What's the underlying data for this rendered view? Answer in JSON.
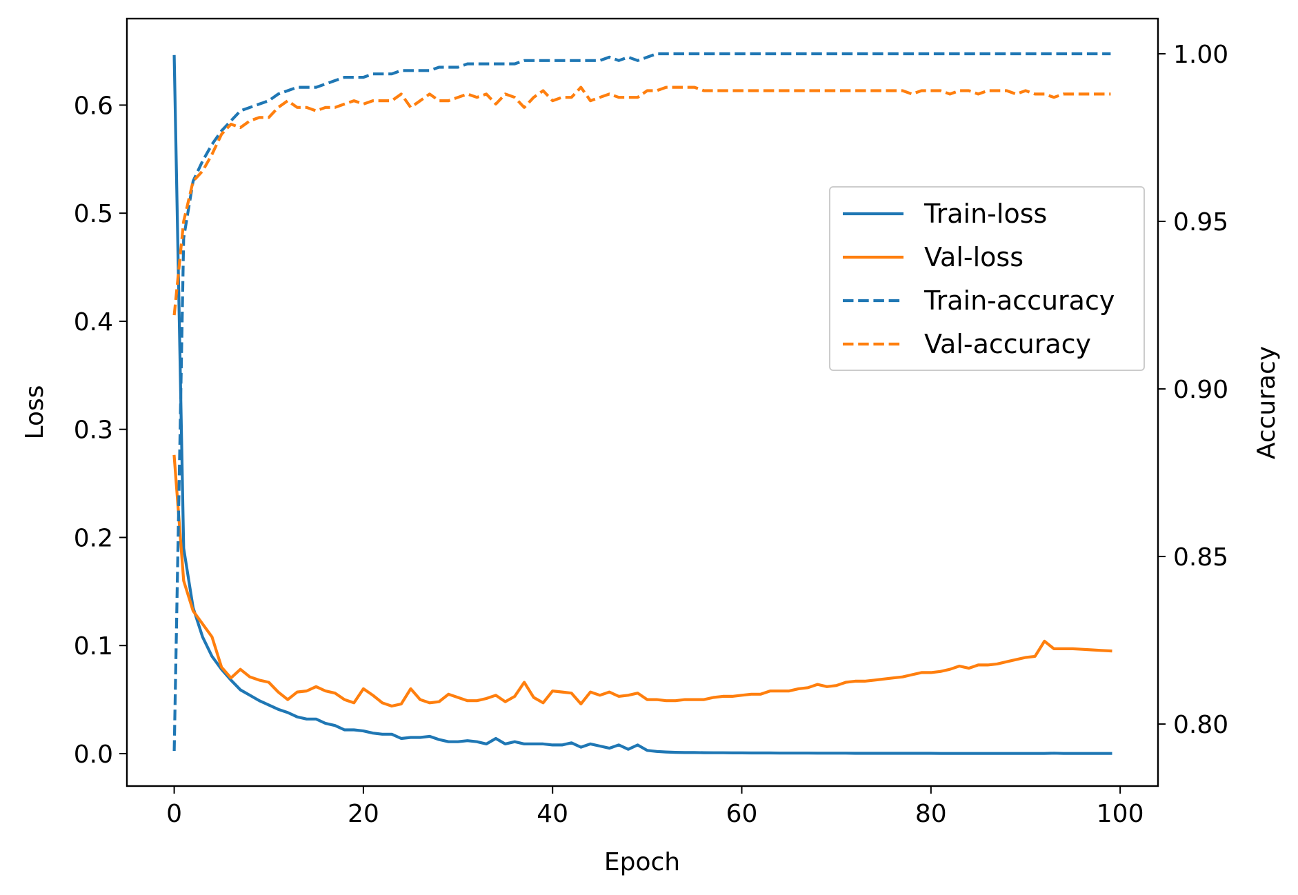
{
  "chart_data": {
    "type": "line",
    "xlabel": "Epoch",
    "ylabel_left": "Loss",
    "ylabel_right": "Accuracy",
    "xlim": [
      -5,
      104
    ],
    "ylim_left": [
      -0.03,
      0.68
    ],
    "ylim_right": [
      0.7815,
      1.0105
    ],
    "x_ticks": [
      0,
      20,
      40,
      60,
      80,
      100
    ],
    "x_tick_labels": [
      "0",
      "20",
      "40",
      "60",
      "80",
      "100"
    ],
    "left_ticks": [
      0.0,
      0.1,
      0.2,
      0.3,
      0.4,
      0.5,
      0.6
    ],
    "left_tick_labels": [
      "0.0",
      "0.1",
      "0.2",
      "0.3",
      "0.4",
      "0.5",
      "0.6"
    ],
    "right_ticks": [
      0.8,
      0.85,
      0.9,
      0.95,
      1.0
    ],
    "right_tick_labels": [
      "0.80",
      "0.85",
      "0.90",
      "0.95",
      "1.00"
    ],
    "grid": false,
    "legend_position": "center-right",
    "series": [
      {
        "name": "Train-loss",
        "axis": "left",
        "style": "solid",
        "color": "#1f77b4",
        "x": [
          0,
          1,
          2,
          3,
          4,
          5,
          6,
          7,
          8,
          9,
          10,
          11,
          12,
          13,
          14,
          15,
          16,
          17,
          18,
          19,
          20,
          21,
          22,
          23,
          24,
          25,
          26,
          27,
          28,
          29,
          30,
          31,
          32,
          33,
          34,
          35,
          36,
          37,
          38,
          39,
          40,
          41,
          42,
          43,
          44,
          45,
          46,
          47,
          48,
          49,
          50,
          51,
          52,
          53,
          54,
          55,
          56,
          57,
          58,
          59,
          60,
          61,
          62,
          63,
          64,
          65,
          66,
          67,
          68,
          69,
          70,
          71,
          72,
          73,
          74,
          75,
          76,
          77,
          78,
          79,
          80,
          81,
          82,
          83,
          84,
          85,
          86,
          87,
          88,
          89,
          90,
          91,
          92,
          93,
          94,
          95,
          96,
          97,
          98,
          99
        ],
        "values": [
          0.645,
          0.19,
          0.135,
          0.108,
          0.09,
          0.078,
          0.068,
          0.059,
          0.054,
          0.049,
          0.045,
          0.041,
          0.038,
          0.034,
          0.032,
          0.032,
          0.028,
          0.026,
          0.022,
          0.022,
          0.021,
          0.019,
          0.018,
          0.018,
          0.014,
          0.015,
          0.015,
          0.016,
          0.013,
          0.011,
          0.011,
          0.012,
          0.011,
          0.009,
          0.014,
          0.009,
          0.011,
          0.009,
          0.009,
          0.009,
          0.008,
          0.008,
          0.01,
          0.006,
          0.009,
          0.007,
          0.005,
          0.008,
          0.004,
          0.008,
          0.003,
          0.002,
          0.0015,
          0.0012,
          0.001,
          0.001,
          0.0009,
          0.0008,
          0.0008,
          0.0007,
          0.0007,
          0.0006,
          0.0006,
          0.0006,
          0.0005,
          0.0005,
          0.0005,
          0.0005,
          0.0004,
          0.0004,
          0.0004,
          0.0004,
          0.0003,
          0.0003,
          0.0003,
          0.0003,
          0.0003,
          0.0003,
          0.0003,
          0.0003,
          0.0003,
          0.0002,
          0.0002,
          0.0002,
          0.0002,
          0.0002,
          0.0002,
          0.0002,
          0.0002,
          0.0002,
          0.0002,
          0.0002,
          0.0002,
          0.0004,
          0.0002,
          0.0002,
          0.0002,
          0.0002,
          0.0002,
          0.0002
        ]
      },
      {
        "name": "Val-loss",
        "axis": "left",
        "style": "solid",
        "color": "#ff7f0e",
        "x": [
          0,
          1,
          2,
          3,
          4,
          5,
          6,
          7,
          8,
          9,
          10,
          11,
          12,
          13,
          14,
          15,
          16,
          17,
          18,
          19,
          20,
          21,
          22,
          23,
          24,
          25,
          26,
          27,
          28,
          29,
          30,
          31,
          32,
          33,
          34,
          35,
          36,
          37,
          38,
          39,
          40,
          41,
          42,
          43,
          44,
          45,
          46,
          47,
          48,
          49,
          50,
          51,
          52,
          53,
          54,
          55,
          56,
          57,
          58,
          59,
          60,
          61,
          62,
          63,
          64,
          65,
          66,
          67,
          68,
          69,
          70,
          71,
          72,
          73,
          74,
          75,
          76,
          77,
          78,
          79,
          80,
          81,
          82,
          83,
          84,
          85,
          86,
          87,
          88,
          89,
          90,
          91,
          92,
          93,
          94,
          95,
          96,
          97,
          98,
          99
        ],
        "values": [
          0.275,
          0.16,
          0.132,
          0.12,
          0.108,
          0.08,
          0.07,
          0.078,
          0.071,
          0.068,
          0.066,
          0.057,
          0.05,
          0.057,
          0.058,
          0.062,
          0.058,
          0.056,
          0.05,
          0.047,
          0.06,
          0.054,
          0.047,
          0.044,
          0.046,
          0.06,
          0.05,
          0.047,
          0.048,
          0.055,
          0.052,
          0.049,
          0.049,
          0.051,
          0.054,
          0.048,
          0.053,
          0.066,
          0.052,
          0.047,
          0.058,
          0.057,
          0.056,
          0.046,
          0.057,
          0.054,
          0.057,
          0.053,
          0.054,
          0.056,
          0.05,
          0.05,
          0.049,
          0.049,
          0.05,
          0.05,
          0.05,
          0.052,
          0.053,
          0.053,
          0.054,
          0.055,
          0.055,
          0.058,
          0.058,
          0.058,
          0.06,
          0.061,
          0.064,
          0.062,
          0.063,
          0.066,
          0.067,
          0.067,
          0.068,
          0.069,
          0.07,
          0.071,
          0.073,
          0.075,
          0.075,
          0.076,
          0.078,
          0.081,
          0.079,
          0.082,
          0.082,
          0.083,
          0.085,
          0.087,
          0.089,
          0.09,
          0.104,
          0.097,
          0.097,
          0.097,
          0.0965,
          0.096,
          0.0955,
          0.095
        ]
      },
      {
        "name": "Train-accuracy",
        "axis": "right",
        "style": "dashed",
        "color": "#1f77b4",
        "x": [
          0,
          1,
          2,
          3,
          4,
          5,
          6,
          7,
          8,
          9,
          10,
          11,
          12,
          13,
          14,
          15,
          16,
          17,
          18,
          19,
          20,
          21,
          22,
          23,
          24,
          25,
          26,
          27,
          28,
          29,
          30,
          31,
          32,
          33,
          34,
          35,
          36,
          37,
          38,
          39,
          40,
          41,
          42,
          43,
          44,
          45,
          46,
          47,
          48,
          49,
          50,
          51,
          52,
          53,
          54,
          55,
          56,
          57,
          58,
          59,
          60,
          61,
          62,
          63,
          64,
          65,
          66,
          67,
          68,
          69,
          70,
          71,
          72,
          73,
          74,
          75,
          76,
          77,
          78,
          79,
          80,
          81,
          82,
          83,
          84,
          85,
          86,
          87,
          88,
          89,
          90,
          91,
          92,
          93,
          94,
          95,
          96,
          97,
          98,
          99
        ],
        "values": [
          0.792,
          0.945,
          0.962,
          0.968,
          0.973,
          0.977,
          0.98,
          0.983,
          0.984,
          0.985,
          0.986,
          0.988,
          0.989,
          0.99,
          0.99,
          0.99,
          0.991,
          0.992,
          0.993,
          0.993,
          0.993,
          0.994,
          0.994,
          0.994,
          0.995,
          0.995,
          0.995,
          0.995,
          0.996,
          0.996,
          0.996,
          0.997,
          0.997,
          0.997,
          0.997,
          0.997,
          0.997,
          0.998,
          0.998,
          0.998,
          0.998,
          0.998,
          0.998,
          0.998,
          0.998,
          0.998,
          0.999,
          0.998,
          0.999,
          0.998,
          0.999,
          1.0,
          1.0,
          1.0,
          1.0,
          1.0,
          1.0,
          1.0,
          1.0,
          1.0,
          1.0,
          1.0,
          1.0,
          1.0,
          1.0,
          1.0,
          1.0,
          1.0,
          1.0,
          1.0,
          1.0,
          1.0,
          1.0,
          1.0,
          1.0,
          1.0,
          1.0,
          1.0,
          1.0,
          1.0,
          1.0,
          1.0,
          1.0,
          1.0,
          1.0,
          1.0,
          1.0,
          1.0,
          1.0,
          1.0,
          1.0,
          1.0,
          1.0,
          1.0,
          1.0,
          1.0,
          1.0,
          1.0,
          1.0,
          1.0
        ]
      },
      {
        "name": "Val-accuracy",
        "axis": "right",
        "style": "dashed",
        "color": "#ff7f0e",
        "x": [
          0,
          1,
          2,
          3,
          4,
          5,
          6,
          7,
          8,
          9,
          10,
          11,
          12,
          13,
          14,
          15,
          16,
          17,
          18,
          19,
          20,
          21,
          22,
          23,
          24,
          25,
          26,
          27,
          28,
          29,
          30,
          31,
          32,
          33,
          34,
          35,
          36,
          37,
          38,
          39,
          40,
          41,
          42,
          43,
          44,
          45,
          46,
          47,
          48,
          49,
          50,
          51,
          52,
          53,
          54,
          55,
          56,
          57,
          58,
          59,
          60,
          61,
          62,
          63,
          64,
          65,
          66,
          67,
          68,
          69,
          70,
          71,
          72,
          73,
          74,
          75,
          76,
          77,
          78,
          79,
          80,
          81,
          82,
          83,
          84,
          85,
          86,
          87,
          88,
          89,
          90,
          91,
          92,
          93,
          94,
          95,
          96,
          97,
          98,
          99
        ],
        "values": [
          0.922,
          0.95,
          0.962,
          0.965,
          0.97,
          0.976,
          0.979,
          0.978,
          0.98,
          0.981,
          0.981,
          0.984,
          0.986,
          0.984,
          0.984,
          0.983,
          0.984,
          0.984,
          0.985,
          0.986,
          0.985,
          0.986,
          0.986,
          0.986,
          0.988,
          0.984,
          0.986,
          0.988,
          0.986,
          0.986,
          0.987,
          0.988,
          0.987,
          0.988,
          0.985,
          0.988,
          0.987,
          0.984,
          0.987,
          0.989,
          0.986,
          0.987,
          0.987,
          0.99,
          0.986,
          0.987,
          0.988,
          0.987,
          0.987,
          0.987,
          0.989,
          0.989,
          0.99,
          0.99,
          0.99,
          0.99,
          0.989,
          0.989,
          0.989,
          0.989,
          0.989,
          0.989,
          0.989,
          0.989,
          0.989,
          0.989,
          0.989,
          0.989,
          0.989,
          0.989,
          0.989,
          0.989,
          0.989,
          0.989,
          0.989,
          0.989,
          0.989,
          0.989,
          0.988,
          0.989,
          0.989,
          0.989,
          0.988,
          0.989,
          0.989,
          0.988,
          0.989,
          0.989,
          0.989,
          0.988,
          0.989,
          0.988,
          0.988,
          0.987,
          0.988,
          0.988,
          0.988,
          0.988,
          0.988,
          0.988
        ]
      }
    ]
  }
}
